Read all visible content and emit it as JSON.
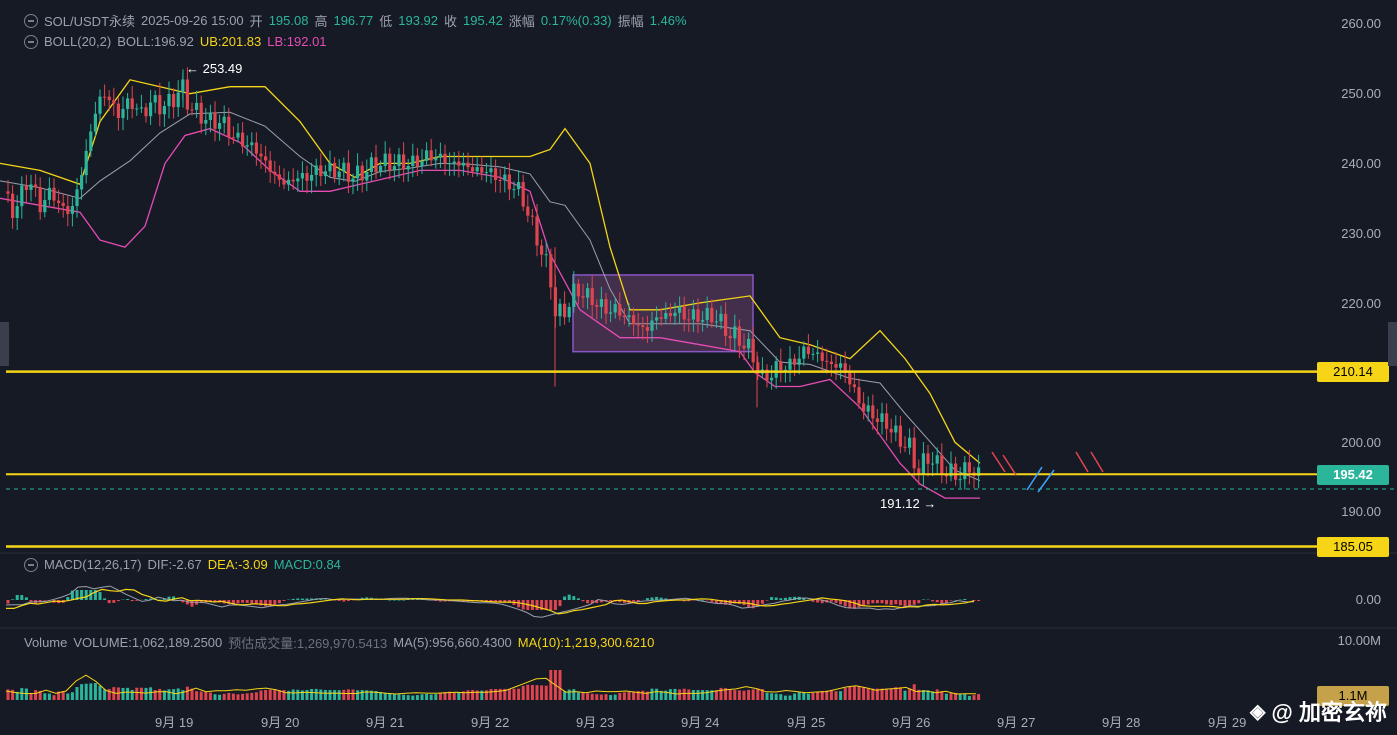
{
  "header": {
    "symbol": "SOL/USDT永续",
    "datetime": "2025-09-26 15:00",
    "open_label": "开",
    "open": "195.08",
    "high_label": "高",
    "high": "196.77",
    "low_label": "低",
    "low": "193.92",
    "close_label": "收",
    "close": "195.42",
    "change_label": "涨幅",
    "change": "0.17%(0.33)",
    "amp_label": "振幅",
    "amp": "1.46%"
  },
  "boll": {
    "name": "BOLL(20,2)",
    "mid": "BOLL:196.92",
    "ub": "UB:201.83",
    "lb": "LB:192.01"
  },
  "macd": {
    "name": "MACD(12,26,17)",
    "dif": "DIF:-2.67",
    "dea": "DEA:-3.09",
    "macd": "MACD:0.84"
  },
  "volume": {
    "name": "Volume",
    "vol": "VOLUME:1,062,189.2500",
    "est": "预估成交量:1,269,970.5413",
    "ma5": "MA(5):956,660.4300",
    "ma10": "MA(10):1,219,300.6210"
  },
  "price_axis": [
    "260.00",
    "250.00",
    "240.00",
    "230.00",
    "220.00",
    "210.14",
    "200.00",
    "195.42",
    "190.00",
    "185.05"
  ],
  "macd_axis": "0.00",
  "volume_axis": [
    "10.00M",
    "1.1M"
  ],
  "x_axis": [
    "9月 19",
    "9月 20",
    "9月 21",
    "9月 22",
    "9月 23",
    "9月 24",
    "9月 25",
    "9月 26",
    "9月 27",
    "9月 28",
    "9月 29"
  ],
  "annotations": {
    "high_marker": "← 253.49",
    "low_marker": "191.12 →"
  },
  "watermark": "@ 加密玄祢",
  "colors": {
    "up": "#2bb59b",
    "down": "#e0454f",
    "boll_upper": "#f5d516",
    "boll_mid": "#9aa0ad",
    "boll_lower": "#e54cb4",
    "hline": "#f5d516",
    "box": "#7a4a7a"
  },
  "chart_data": {
    "type": "candlestick",
    "title": "SOL/USDT永续",
    "timeframe": "hourly",
    "ylim": [
      185,
      262
    ],
    "horizontal_levels": [
      210.14,
      195.42,
      185.05
    ],
    "price_path": [
      [
        0,
        236
      ],
      [
        15,
        233
      ],
      [
        28,
        238
      ],
      [
        40,
        234
      ],
      [
        52,
        236
      ],
      [
        64,
        233
      ],
      [
        74,
        234
      ],
      [
        82,
        239
      ],
      [
        90,
        244
      ],
      [
        98,
        249
      ],
      [
        106,
        250
      ],
      [
        118,
        247
      ],
      [
        130,
        249
      ],
      [
        142,
        247
      ],
      [
        152,
        249
      ],
      [
        162,
        248
      ],
      [
        172,
        249
      ],
      [
        182,
        251
      ],
      [
        190,
        248
      ],
      [
        200,
        247
      ],
      [
        210,
        246
      ],
      [
        222,
        246
      ],
      [
        232,
        244
      ],
      [
        244,
        243
      ],
      [
        256,
        242
      ],
      [
        266,
        240
      ],
      [
        276,
        238
      ],
      [
        286,
        237
      ],
      [
        296,
        238
      ],
      [
        306,
        238
      ],
      [
        318,
        239
      ],
      [
        330,
        239
      ],
      [
        342,
        239
      ],
      [
        354,
        238
      ],
      [
        366,
        239
      ],
      [
        378,
        240
      ],
      [
        390,
        240
      ],
      [
        402,
        240
      ],
      [
        414,
        240
      ],
      [
        426,
        241
      ],
      [
        438,
        241
      ],
      [
        450,
        240
      ],
      [
        462,
        240
      ],
      [
        474,
        239
      ],
      [
        486,
        239
      ],
      [
        498,
        238
      ],
      [
        510,
        237
      ],
      [
        520,
        236
      ],
      [
        530,
        232
      ],
      [
        540,
        228
      ],
      [
        550,
        224
      ],
      [
        556,
        218
      ],
      [
        566,
        219
      ],
      [
        576,
        222
      ],
      [
        586,
        221
      ],
      [
        596,
        220
      ],
      [
        606,
        219
      ],
      [
        616,
        219
      ],
      [
        626,
        218
      ],
      [
        636,
        217
      ],
      [
        646,
        216
      ],
      [
        656,
        218
      ],
      [
        666,
        218
      ],
      [
        676,
        219
      ],
      [
        686,
        218
      ],
      [
        696,
        218
      ],
      [
        706,
        218
      ],
      [
        716,
        218
      ],
      [
        726,
        216
      ],
      [
        736,
        215
      ],
      [
        746,
        214
      ],
      [
        754,
        212
      ],
      [
        762,
        209
      ],
      [
        772,
        210
      ],
      [
        782,
        211
      ],
      [
        792,
        211
      ],
      [
        802,
        213
      ],
      [
        812,
        213
      ],
      [
        822,
        212
      ],
      [
        832,
        211
      ],
      [
        842,
        211
      ],
      [
        852,
        208
      ],
      [
        862,
        205
      ],
      [
        872,
        204
      ],
      [
        882,
        203
      ],
      [
        892,
        202
      ],
      [
        900,
        200
      ],
      [
        908,
        200
      ],
      [
        916,
        196
      ],
      [
        924,
        197
      ],
      [
        932,
        198
      ],
      [
        940,
        196
      ],
      [
        948,
        196
      ],
      [
        956,
        195
      ],
      [
        964,
        196
      ],
      [
        972,
        196
      ],
      [
        980,
        195.4
      ]
    ],
    "boll_upper_path": [
      [
        0,
        240
      ],
      [
        40,
        239
      ],
      [
        80,
        237
      ],
      [
        100,
        246
      ],
      [
        130,
        252
      ],
      [
        160,
        251
      ],
      [
        190,
        250
      ],
      [
        230,
        251
      ],
      [
        265,
        251
      ],
      [
        300,
        246
      ],
      [
        330,
        240
      ],
      [
        355,
        238
      ],
      [
        380,
        240
      ],
      [
        410,
        240
      ],
      [
        440,
        241
      ],
      [
        470,
        241
      ],
      [
        500,
        241
      ],
      [
        530,
        241
      ],
      [
        550,
        242
      ],
      [
        565,
        245
      ],
      [
        590,
        240
      ],
      [
        610,
        228
      ],
      [
        630,
        219
      ],
      [
        660,
        219
      ],
      [
        700,
        220
      ],
      [
        750,
        221
      ],
      [
        780,
        215
      ],
      [
        810,
        214
      ],
      [
        850,
        212
      ],
      [
        880,
        216
      ],
      [
        905,
        212
      ],
      [
        930,
        207
      ],
      [
        955,
        200
      ],
      [
        980,
        197
      ]
    ],
    "boll_lower_path": [
      [
        0,
        235
      ],
      [
        40,
        234
      ],
      [
        80,
        233
      ],
      [
        100,
        229
      ],
      [
        125,
        228
      ],
      [
        145,
        231
      ],
      [
        165,
        240
      ],
      [
        185,
        244
      ],
      [
        210,
        245
      ],
      [
        240,
        243
      ],
      [
        270,
        239
      ],
      [
        300,
        236
      ],
      [
        330,
        236
      ],
      [
        360,
        237
      ],
      [
        390,
        238
      ],
      [
        420,
        239
      ],
      [
        460,
        239
      ],
      [
        500,
        238
      ],
      [
        530,
        236
      ],
      [
        550,
        227
      ],
      [
        580,
        219
      ],
      [
        620,
        215
      ],
      [
        660,
        215
      ],
      [
        700,
        214
      ],
      [
        740,
        213
      ],
      [
        755,
        210
      ],
      [
        775,
        208
      ],
      [
        800,
        208
      ],
      [
        830,
        209
      ],
      [
        860,
        205
      ],
      [
        880,
        201
      ],
      [
        900,
        197
      ],
      [
        920,
        194
      ],
      [
        945,
        192
      ],
      [
        980,
        192
      ]
    ],
    "rectangle_zone": {
      "x_from": "9月 22",
      "x_to": "9月 24",
      "y_range": [
        213,
        224
      ]
    },
    "high_point": 253.49,
    "low_point": 191.12,
    "macd": {
      "dif": -2.67,
      "dea": -3.09,
      "histogram": 0.84
    },
    "volume": {
      "last": 1062189.25,
      "ma5": 956660.43,
      "ma10": 1219300.621
    }
  }
}
